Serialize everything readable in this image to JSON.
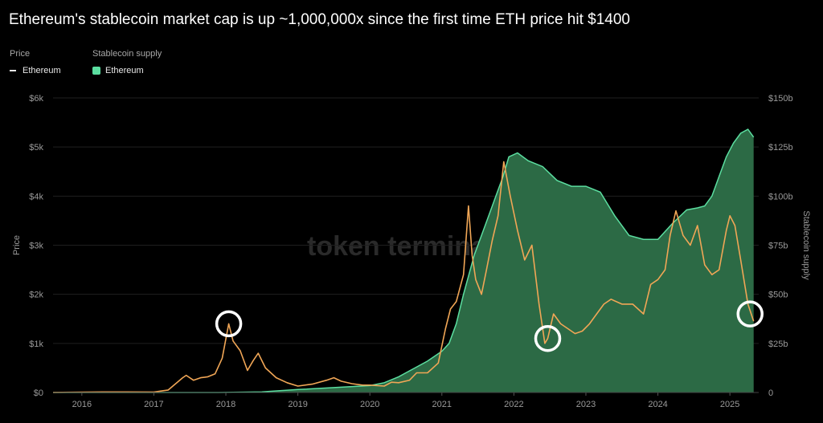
{
  "title": "Ethereum's stablecoin market cap is up ~1,000,000x since the first time ETH price hit $1400",
  "legend": {
    "price_header": "Price",
    "price_label": "Ethereum",
    "supply_header": "Stablecoin supply",
    "supply_label": "Ethereum"
  },
  "watermark": "token terminal",
  "colors": {
    "price": "#f0a656",
    "supply_fill": "#2c6a45",
    "supply_line": "#5bdea0",
    "highlight": "#ffffff"
  },
  "chart_data": {
    "type": "line",
    "title": "Ethereum's stablecoin market cap is up ~1,000,000x since the first time ETH price hit $1400",
    "ylabel": "Price",
    "y2label": "Stablecoin supply",
    "ylim": [
      0,
      6000
    ],
    "y2lim": [
      0,
      150
    ],
    "xlim": [
      2015.6,
      2025.4
    ],
    "x_ticks": [
      "2016",
      "2017",
      "2018",
      "2019",
      "2020",
      "2021",
      "2022",
      "2023",
      "2024",
      "2025"
    ],
    "y_ticks": [
      "$0",
      "$1k",
      "$2k",
      "$3k",
      "$4k",
      "$5k",
      "$6k"
    ],
    "y2_ticks": [
      "0",
      "$25b",
      "$50b",
      "$75b",
      "$100b",
      "$125b",
      "$150b"
    ],
    "series": [
      {
        "name": "Ethereum",
        "axis": "left",
        "kind": "line",
        "x": [
          2015.6,
          2016.0,
          2016.3,
          2016.6,
          2017.0,
          2017.2,
          2017.4,
          2017.45,
          2017.55,
          2017.65,
          2017.75,
          2017.85,
          2017.95,
          2018.04,
          2018.1,
          2018.2,
          2018.3,
          2018.38,
          2018.45,
          2018.55,
          2018.7,
          2018.85,
          2019.0,
          2019.2,
          2019.4,
          2019.5,
          2019.6,
          2019.75,
          2019.9,
          2020.0,
          2020.2,
          2020.3,
          2020.4,
          2020.55,
          2020.65,
          2020.8,
          2020.95,
          2021.05,
          2021.12,
          2021.2,
          2021.3,
          2021.37,
          2021.42,
          2021.47,
          2021.55,
          2021.62,
          2021.7,
          2021.78,
          2021.86,
          2021.95,
          2022.05,
          2022.15,
          2022.25,
          2022.35,
          2022.43,
          2022.47,
          2022.55,
          2022.65,
          2022.75,
          2022.85,
          2022.95,
          2023.05,
          2023.15,
          2023.25,
          2023.35,
          2023.5,
          2023.65,
          2023.8,
          2023.9,
          2024.0,
          2024.1,
          2024.17,
          2024.25,
          2024.35,
          2024.45,
          2024.55,
          2024.65,
          2024.75,
          2024.85,
          2024.95,
          2025.0,
          2025.07,
          2025.15,
          2025.25,
          2025.33
        ],
        "y": [
          1,
          8,
          12,
          12,
          10,
          50,
          300,
          350,
          250,
          300,
          320,
          380,
          700,
          1400,
          1050,
          850,
          450,
          650,
          800,
          500,
          300,
          200,
          130,
          170,
          250,
          300,
          230,
          180,
          150,
          150,
          130,
          210,
          200,
          250,
          400,
          400,
          600,
          1300,
          1700,
          1850,
          2400,
          3800,
          2800,
          2300,
          2000,
          2500,
          3100,
          3600,
          4700,
          4000,
          3300,
          2700,
          3000,
          1800,
          1000,
          1100,
          1600,
          1400,
          1300,
          1200,
          1250,
          1400,
          1600,
          1800,
          1900,
          1800,
          1800,
          1600,
          2200,
          2300,
          2500,
          3200,
          3700,
          3200,
          3000,
          3400,
          2600,
          2400,
          2500,
          3300,
          3600,
          3400,
          2700,
          1800,
          1450
        ]
      },
      {
        "name": "Ethereum",
        "axis": "right",
        "kind": "area",
        "x": [
          2015.6,
          2017.9,
          2018.5,
          2019.0,
          2019.5,
          2020.0,
          2020.2,
          2020.4,
          2020.6,
          2020.8,
          2021.0,
          2021.1,
          2021.2,
          2021.3,
          2021.45,
          2021.6,
          2021.75,
          2021.85,
          2021.93,
          2022.05,
          2022.2,
          2022.4,
          2022.6,
          2022.8,
          2023.0,
          2023.2,
          2023.4,
          2023.6,
          2023.8,
          2024.0,
          2024.2,
          2024.4,
          2024.55,
          2024.65,
          2024.75,
          2024.85,
          2024.95,
          2025.05,
          2025.15,
          2025.25,
          2025.33
        ],
        "y": [
          0,
          0,
          0.3,
          1.5,
          2.5,
          3.5,
          5,
          8,
          12,
          16,
          21,
          25,
          35,
          50,
          70,
          85,
          100,
          110,
          120,
          122,
          118,
          115,
          108,
          105,
          105,
          102,
          90,
          80,
          78,
          78,
          86,
          93,
          94,
          95,
          100,
          110,
          120,
          127,
          132,
          134,
          130
        ]
      }
    ],
    "annotations": [
      {
        "type": "circle",
        "x": 2018.04,
        "y": 1400,
        "axis": "left"
      },
      {
        "type": "circle",
        "x": 2022.47,
        "y": 1100,
        "axis": "left"
      },
      {
        "type": "circle",
        "x": 2025.28,
        "y": 1600,
        "axis": "left"
      }
    ]
  }
}
